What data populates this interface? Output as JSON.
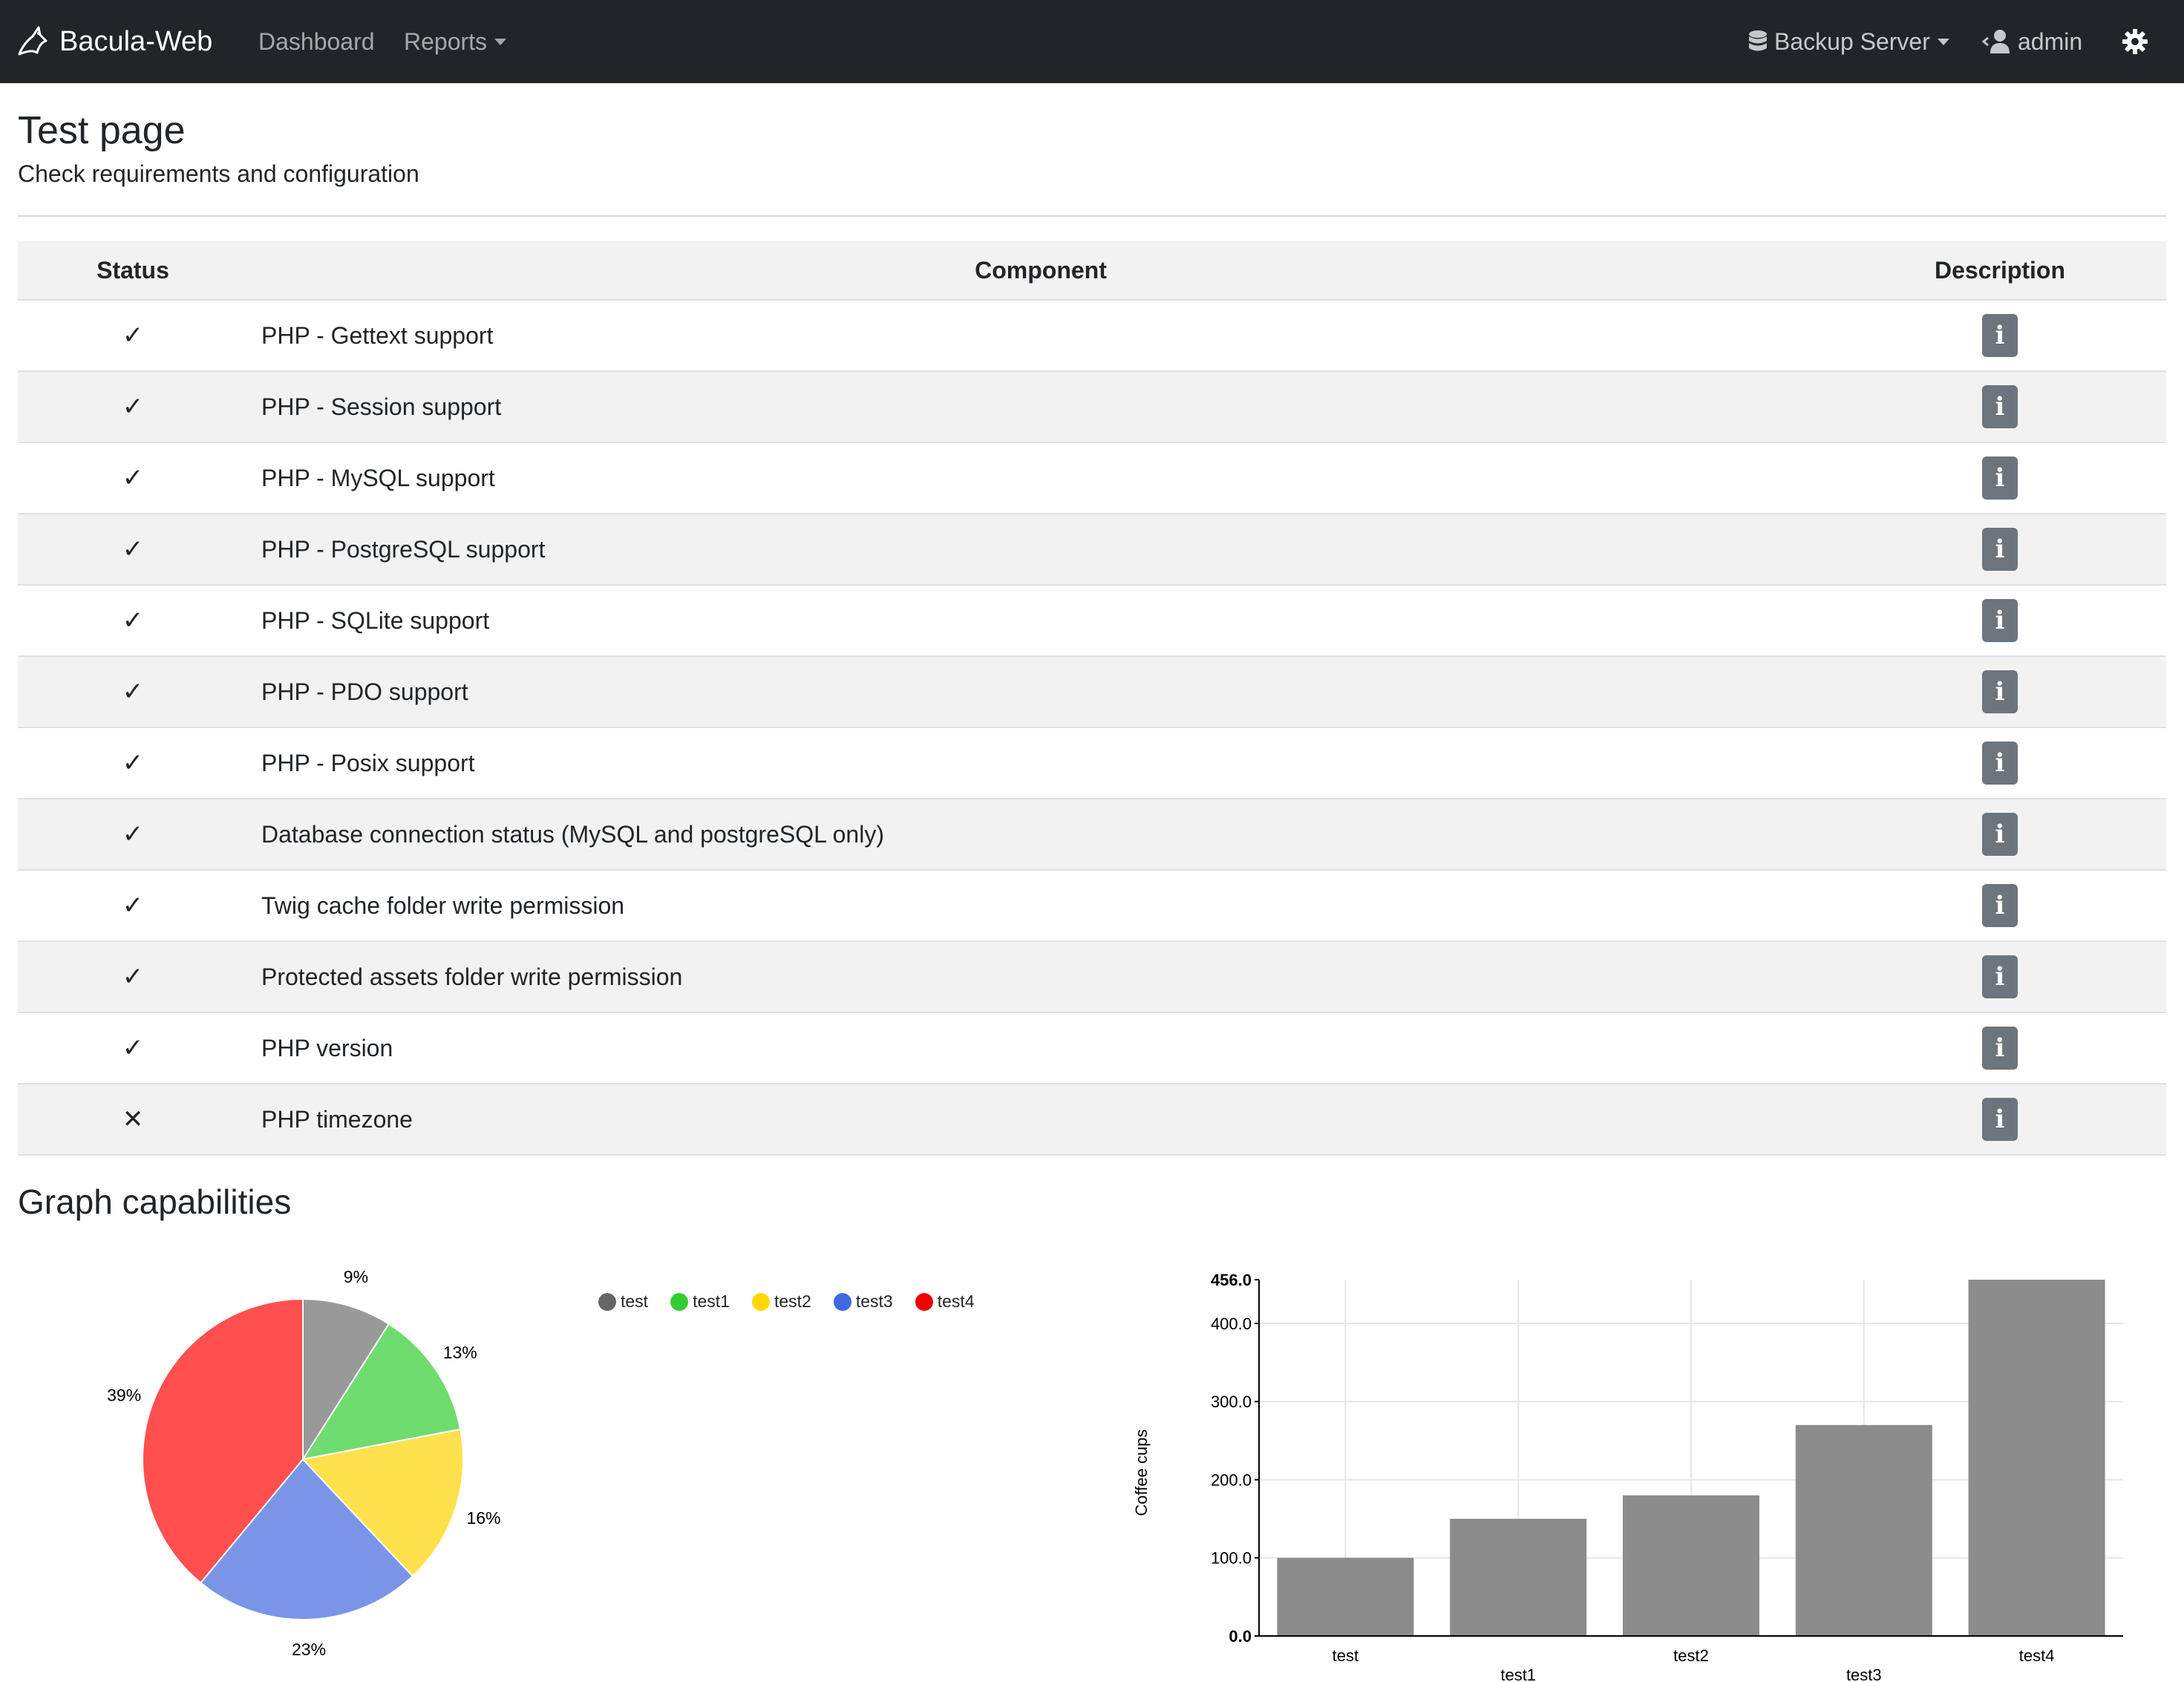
{
  "navbar": {
    "brand": "Bacula-Web",
    "dashboard": "Dashboard",
    "reports": "Reports",
    "server": "Backup Server",
    "user": "admin"
  },
  "page": {
    "title": "Test page",
    "subtitle": "Check requirements and configuration"
  },
  "table": {
    "headers": {
      "status": "Status",
      "component": "Component",
      "description": "Description"
    },
    "rows": [
      {
        "status": "✓",
        "component": "PHP - Gettext support"
      },
      {
        "status": "✓",
        "component": "PHP - Session support"
      },
      {
        "status": "✓",
        "component": "PHP - MySQL support"
      },
      {
        "status": "✓",
        "component": "PHP - PostgreSQL support"
      },
      {
        "status": "✓",
        "component": "PHP - SQLite support"
      },
      {
        "status": "✓",
        "component": "PHP - PDO support"
      },
      {
        "status": "✓",
        "component": "PHP - Posix support"
      },
      {
        "status": "✓",
        "component": "Database connection status (MySQL and postgreSQL only)"
      },
      {
        "status": "✓",
        "component": "Twig cache folder write permission"
      },
      {
        "status": "✓",
        "component": "Protected assets folder write permission"
      },
      {
        "status": "✓",
        "component": "PHP version"
      },
      {
        "status": "✕",
        "component": "PHP timezone"
      }
    ],
    "info_label": "i"
  },
  "graphs": {
    "title": "Graph capabilities"
  },
  "chart_data": [
    {
      "type": "pie",
      "categories": [
        "test",
        "test1",
        "test2",
        "test3",
        "test4"
      ],
      "values": [
        9,
        13,
        16,
        23,
        39
      ],
      "labels": [
        "9%",
        "13%",
        "16%",
        "23%",
        "39%"
      ],
      "colors": [
        "#999999",
        "#6fdc6f",
        "#ffe14d",
        "#7a95e8",
        "#ff4f4f"
      ],
      "legend_colors": [
        "#666666",
        "#33cc33",
        "#ffd700",
        "#4169e1",
        "#ee0000"
      ],
      "legend": "top"
    },
    {
      "type": "bar",
      "categories": [
        "test",
        "test1",
        "test2",
        "test3",
        "test4"
      ],
      "values": [
        100,
        150,
        180,
        270,
        456
      ],
      "ylabel": "Coffee cups",
      "ylim": [
        0,
        456
      ],
      "yticks": [
        "0.0",
        "100.0",
        "200.0",
        "300.0",
        "400.0",
        "456.0"
      ],
      "bar_color": "#8c8c8c",
      "grid": true
    }
  ]
}
